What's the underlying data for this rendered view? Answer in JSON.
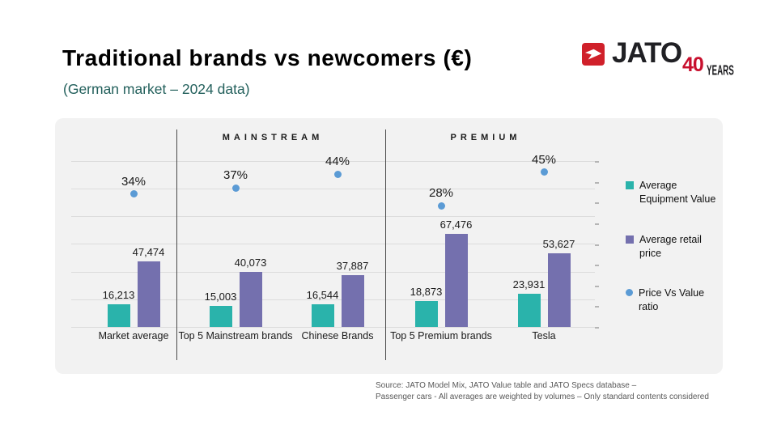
{
  "header": {
    "title": "Traditional brands vs newcomers (€)",
    "subtitle": "(German market – 2024 data)"
  },
  "logo": {
    "name": "JATO",
    "badge_number": "40",
    "badge_label": "YEARS",
    "icon": "jato-arrow-icon",
    "red": "#d0202a",
    "badge_red": "#c8102e"
  },
  "chart_data": {
    "type": "bar",
    "title": "Traditional brands vs newcomers (€)",
    "subtitle": "(German market – 2024 data)",
    "categories": [
      "Market average",
      "Top 5 Mainstream brands",
      "Chinese Brands",
      "Top 5 Premium brands",
      "Tesla"
    ],
    "sections": [
      {
        "label": "MAINSTREAM",
        "covers": [
          "Top 5 Mainstream brands",
          "Chinese Brands"
        ]
      },
      {
        "label": "PREMIUM",
        "covers": [
          "Top 5 Premium brands",
          "Tesla"
        ]
      }
    ],
    "series": [
      {
        "name": "Average Equipment Value",
        "type": "bar",
        "color": "#2ab3ab",
        "values": [
          16213,
          15003,
          16544,
          18873,
          23931
        ],
        "labels": [
          "16,213",
          "15,003",
          "16,544",
          "18,873",
          "23,931"
        ]
      },
      {
        "name": "Average retail price",
        "type": "bar",
        "color": "#7470ae",
        "values": [
          47474,
          40073,
          37887,
          67476,
          53627
        ],
        "labels": [
          "47,474",
          "40,073",
          "37,887",
          "67,476",
          "53,627"
        ]
      },
      {
        "name": "Price Vs Value ratio",
        "type": "scatter",
        "color": "#5b9bd5",
        "values": [
          34,
          37,
          44,
          28,
          45
        ],
        "labels": [
          "34%",
          "37%",
          "44%",
          "28%",
          "45%"
        ]
      }
    ],
    "ylim": [
      0,
      120000
    ],
    "grid": true,
    "gridline_step": 20000,
    "legend_position": "right",
    "axes_tick_labels_visible": false
  },
  "footer": {
    "source_line1": "Source: JATO Model Mix, JATO Value table and JATO Specs database –",
    "source_line2": "Passenger cars - All averages are weighted by volumes – Only standard contents considered"
  }
}
